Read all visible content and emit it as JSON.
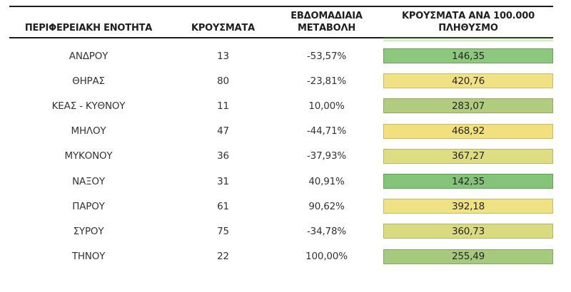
{
  "chart_data": {
    "type": "table",
    "columns": [
      "ΠΕΡΙΦΕΡΕΙΑΚΗ ΕΝΟΤΗΤΑ",
      "ΚΡΟΥΣΜΑΤΑ",
      "ΕΒΔΟΜΑΔΙΑΙΑ ΜΕΤΑΒΟΛΗ",
      "ΚΡΟΥΣΜΑΤΑ ΑΝΑ 100.000 ΠΛΗΘΥΣΜΟ"
    ],
    "rows": [
      {
        "region": "ΑΝΔΡΟΥ",
        "cases": "13",
        "weekly_change": "-53,57%",
        "per_100k": "146,35",
        "fill": "#8dc87e",
        "border": "#699f58"
      },
      {
        "region": "ΘΗΡΑΣ",
        "cases": "80",
        "weekly_change": "-23,81%",
        "per_100k": "420,76",
        "fill": "#f0e284",
        "border": "#c9bd69"
      },
      {
        "region": "ΚΕΑΣ - ΚΥΘΝΟΥ",
        "cases": "11",
        "weekly_change": "10,00%",
        "per_100k": "283,07",
        "fill": "#b1cc7e",
        "border": "#90aa60"
      },
      {
        "region": "ΜΗΛΟΥ",
        "cases": "47",
        "weekly_change": "-44,71%",
        "per_100k": "468,92",
        "fill": "#f2e07e",
        "border": "#cab964"
      },
      {
        "region": "ΜΥΚΟΝΟΥ",
        "cases": "36",
        "weekly_change": "-37,93%",
        "per_100k": "367,27",
        "fill": "#dedd84",
        "border": "#b7b569"
      },
      {
        "region": "ΝΑΞΟΥ",
        "cases": "31",
        "weekly_change": "40,91%",
        "per_100k": "142,35",
        "fill": "#83c37a",
        "border": "#63a055"
      },
      {
        "region": "ΠΑΡΟΥ",
        "cases": "61",
        "weekly_change": "90,62%",
        "per_100k": "392,18",
        "fill": "#efe284",
        "border": "#c6ba6a"
      },
      {
        "region": "ΣΥΡΟΥ",
        "cases": "75",
        "weekly_change": "-34,78%",
        "per_100k": "360,73",
        "fill": "#dadb81",
        "border": "#b2b367"
      },
      {
        "region": "ΤΗΝΟΥ",
        "cases": "22",
        "weekly_change": "100,00%",
        "per_100k": "255,49",
        "fill": "#a5c97d",
        "border": "#85a65f"
      }
    ],
    "layout": {
      "color_scale_column": "ΚΡΟΥΣΜΑΤΑ ΑΝΑ 100.000 ΠΛΗΘΥΣΜΟ",
      "color_scale_low": "#83c37a",
      "color_scale_high": "#f2e07e",
      "header_border_color": "#1c1c1c",
      "per100k_header_border_color": "#24451a"
    }
  }
}
